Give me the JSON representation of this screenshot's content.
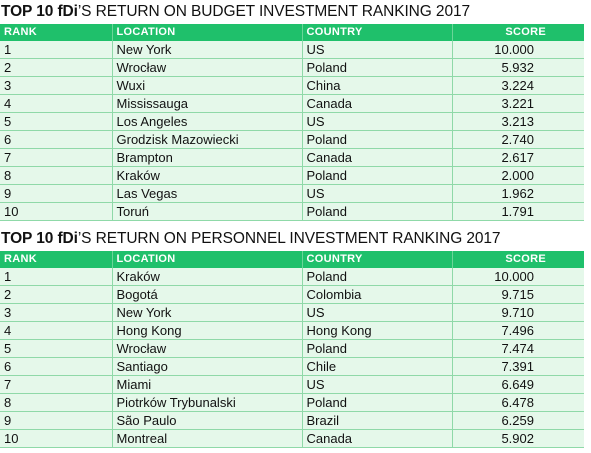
{
  "budget": {
    "title_bold": "TOP 10 fDi",
    "title_rest": "’S RETURN ON BUDGET INVESTMENT RANKING 2017",
    "headers": {
      "rank": "RANK",
      "location": "LOCATION",
      "country": "COUNTRY",
      "score": "SCORE"
    },
    "rows": [
      {
        "rank": "1",
        "location": "New York",
        "country": "US",
        "score": "10.000"
      },
      {
        "rank": "2",
        "location": "Wrocław",
        "country": "Poland",
        "score": "5.932"
      },
      {
        "rank": "3",
        "location": "Wuxi",
        "country": "China",
        "score": "3.224"
      },
      {
        "rank": "4",
        "location": "Mississauga",
        "country": "Canada",
        "score": "3.221"
      },
      {
        "rank": "5",
        "location": "Los Angeles",
        "country": "US",
        "score": "3.213"
      },
      {
        "rank": "6",
        "location": "Grodzisk Mazowiecki",
        "country": "Poland",
        "score": "2.740"
      },
      {
        "rank": "7",
        "location": "Brampton",
        "country": "Canada",
        "score": "2.617"
      },
      {
        "rank": "8",
        "location": "Kraków",
        "country": "Poland",
        "score": "2.000"
      },
      {
        "rank": "9",
        "location": "Las Vegas",
        "country": "US",
        "score": "1.962"
      },
      {
        "rank": "10",
        "location": "Toruń",
        "country": "Poland",
        "score": "1.791"
      }
    ]
  },
  "personnel": {
    "title_bold": "TOP 10 fDi",
    "title_rest": "’S RETURN ON PERSONNEL INVESTMENT RANKING 2017",
    "headers": {
      "rank": "RANK",
      "location": "LOCATION",
      "country": "COUNTRY",
      "score": "SCORE"
    },
    "rows": [
      {
        "rank": "1",
        "location": "Kraków",
        "country": "Poland",
        "score": "10.000"
      },
      {
        "rank": "2",
        "location": "Bogotá",
        "country": "Colombia",
        "score": "9.715"
      },
      {
        "rank": "3",
        "location": "New York",
        "country": "US",
        "score": "9.710"
      },
      {
        "rank": "4",
        "location": "Hong Kong",
        "country": "Hong Kong",
        "score": "7.496"
      },
      {
        "rank": "5",
        "location": "Wrocław",
        "country": "Poland",
        "score": "7.474"
      },
      {
        "rank": "6",
        "location": "Santiago",
        "country": "Chile",
        "score": "7.391"
      },
      {
        "rank": "7",
        "location": "Miami",
        "country": "US",
        "score": "6.649"
      },
      {
        "rank": "8",
        "location": "Piotrków Trybunalski",
        "country": "Poland",
        "score": "6.478"
      },
      {
        "rank": "9",
        "location": "São Paulo",
        "country": "Brazil",
        "score": "6.259"
      },
      {
        "rank": "10",
        "location": "Montreal",
        "country": "Canada",
        "score": "5.902"
      }
    ]
  }
}
